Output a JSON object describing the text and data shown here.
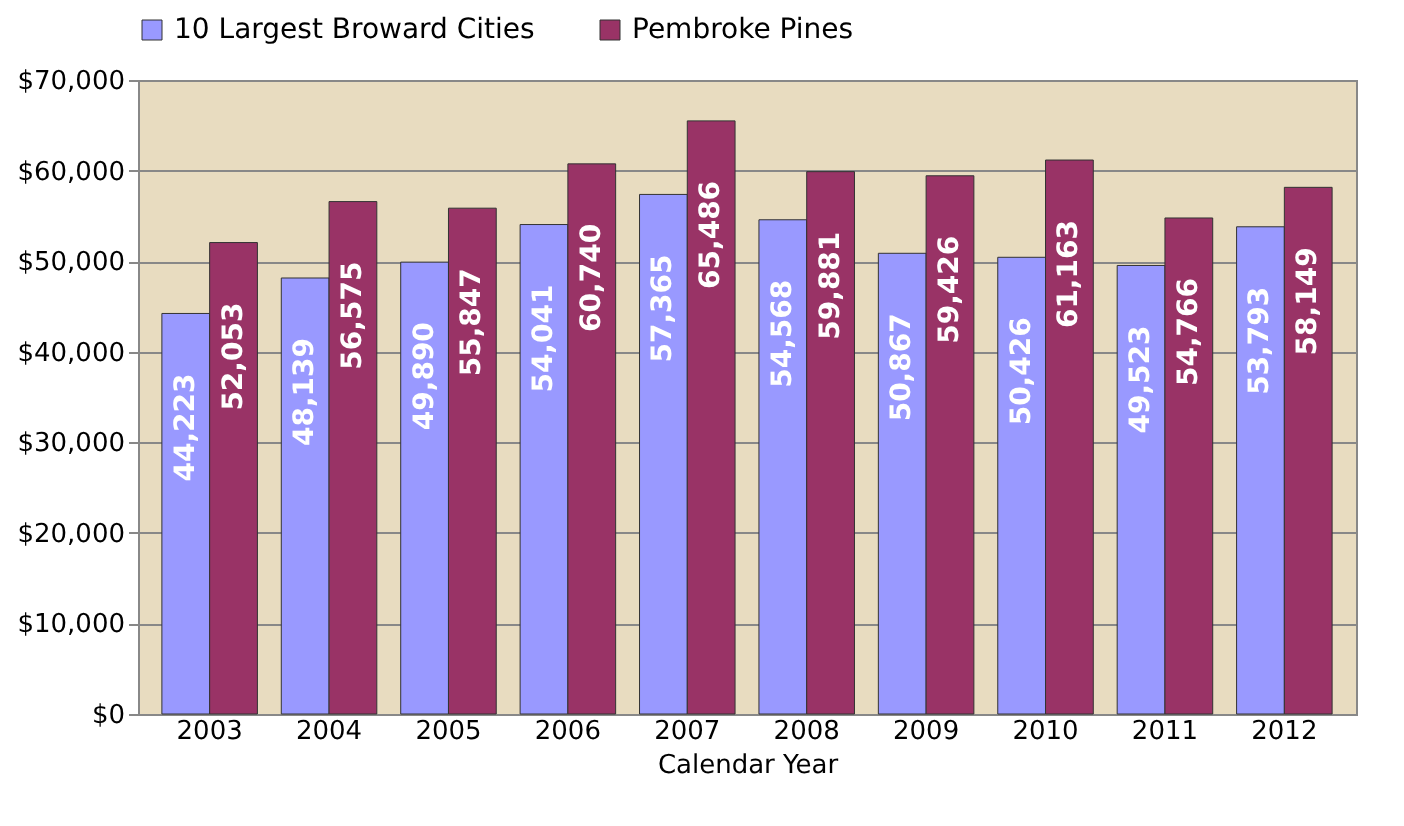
{
  "chart_data": {
    "type": "bar",
    "xlabel": "Calendar Year",
    "categories": [
      "2003",
      "2004",
      "2005",
      "2006",
      "2007",
      "2008",
      "2009",
      "2010",
      "2011",
      "2012"
    ],
    "series": [
      {
        "name": "10 Largest Broward Cities",
        "color": "#9999ff",
        "values": [
          44223,
          48139,
          49890,
          54041,
          57365,
          54568,
          50867,
          50426,
          49523,
          53793
        ],
        "value_labels": [
          "44,223",
          "48,139",
          "49,890",
          "54,041",
          "57,365",
          "54,568",
          "50,867",
          "50,426",
          "49,523",
          "53,793"
        ]
      },
      {
        "name": "Pembroke Pines",
        "color": "#993366",
        "values": [
          52053,
          56575,
          55847,
          60740,
          65486,
          59881,
          59426,
          61163,
          54766,
          58149
        ],
        "value_labels": [
          "52,053",
          "56,575",
          "55,847",
          "60,740",
          "65,486",
          "59,881",
          "59,426",
          "61,163",
          "54,766",
          "58,149"
        ]
      }
    ],
    "ylim": [
      0,
      70000
    ],
    "yticks": [
      {
        "value": 0,
        "label": "$0"
      },
      {
        "value": 10000,
        "label": "$10,000"
      },
      {
        "value": 20000,
        "label": "$20,000"
      },
      {
        "value": 30000,
        "label": "$30,000"
      },
      {
        "value": 40000,
        "label": "$40,000"
      },
      {
        "value": 50000,
        "label": "$50,000"
      },
      {
        "value": 60000,
        "label": "$60,000"
      },
      {
        "value": 70000,
        "label": "$70,000"
      }
    ],
    "grid": "y",
    "legend": "top"
  }
}
